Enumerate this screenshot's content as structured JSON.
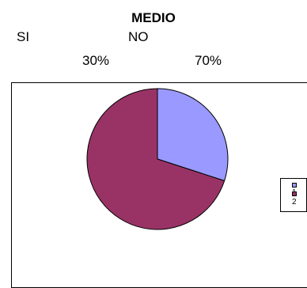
{
  "chart_data": {
    "type": "pie",
    "title": "MEDIO",
    "columns": [
      {
        "label": "SI",
        "percent_label": "30%"
      },
      {
        "label": "NO",
        "percent_label": "70%"
      }
    ],
    "slices": [
      {
        "legend": "1",
        "value": 30,
        "color": "#9999ff"
      },
      {
        "legend": "2",
        "value": 70,
        "color": "#993366"
      }
    ]
  }
}
